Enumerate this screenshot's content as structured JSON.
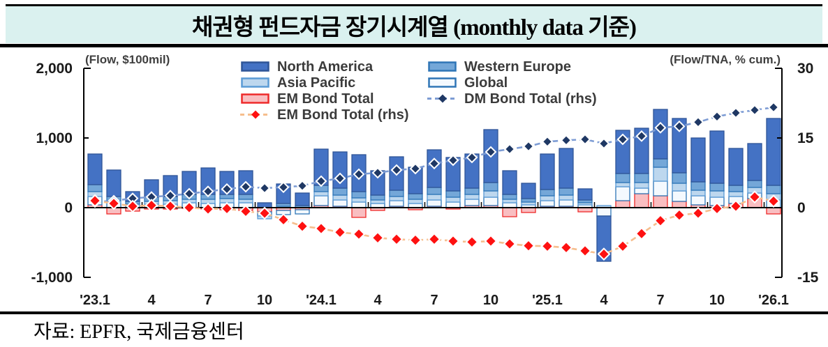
{
  "title": "채권형 펀드자금 장기시계열 (monthly data 기준)",
  "source": "자료: EPFR,  국제금융센터",
  "axes": {
    "left_unit": "(Flow, $100mil)",
    "right_unit": "(Flow/TNA, % cum.)",
    "left_tick_labels": [
      "2,000",
      "1,000",
      "0",
      "-1,000"
    ],
    "right_tick_labels": [
      "30",
      "15",
      "0",
      "-15"
    ],
    "left_range": [
      -1000,
      2000
    ],
    "right_range": [
      -15,
      30
    ]
  },
  "legend": {
    "columns": [
      [
        {
          "label": "North America",
          "type": "box",
          "fill": "#4472c4",
          "stroke": "#2f5597"
        },
        {
          "label": "Asia Pacific",
          "type": "box",
          "fill": "#bdd7ee",
          "stroke": "#5b9bd5"
        },
        {
          "label": "EM Bond Total",
          "type": "box",
          "fill": "#f9bec1",
          "stroke": "#ee2a2a"
        },
        {
          "label": "EM Bond Total (rhs)",
          "type": "line",
          "stroke": "#f6be8d",
          "marker": "#fe1111"
        }
      ],
      [
        {
          "label": "Western Europe",
          "type": "box",
          "fill": "#74a7d8",
          "stroke": "#2e75b6"
        },
        {
          "label": "Global",
          "type": "box",
          "fill": "#f4f9fe",
          "stroke": "#2e75b6"
        },
        {
          "label": "DM Bond Total (rhs)",
          "type": "line",
          "stroke": "#7d9cd4",
          "marker": "#1f3864"
        }
      ]
    ]
  },
  "chart_data": {
    "type": "combo: stacked bar (lhs) + line (rhs)",
    "categories": [
      "'23.1",
      "'23.2",
      "'23.3",
      "'23.4",
      "'23.5",
      "'23.6",
      "'23.7",
      "'23.8",
      "'23.9",
      "'23.10",
      "'23.11",
      "'23.12",
      "'24.1",
      "'24.2",
      "'24.3",
      "'24.4",
      "'24.5",
      "'24.6",
      "'24.7",
      "'24.8",
      "'24.9",
      "'24.10",
      "'24.11",
      "'24.12",
      "'25.1",
      "'25.2",
      "'25.3",
      "'25.4",
      "'25.5",
      "'25.6",
      "'25.7",
      "'25.8",
      "'25.9",
      "'25.10",
      "'25.11",
      "'25.12",
      "'26.1"
    ],
    "x_axis_labels": [
      "'23.1",
      "4",
      "7",
      "10",
      "'24.1",
      "4",
      "7",
      "10",
      "'25.1",
      "4",
      "7",
      "10",
      "'26.1"
    ],
    "title": "채권형 펀드자금 장기시계열 (monthly data 기준)",
    "left_ylabel": "(Flow, $100mil)",
    "right_ylabel": "(Flow/TNA, % cum.)",
    "left_ylim": [
      -1000,
      2000
    ],
    "right_ylim": [
      -15,
      30
    ],
    "bar_series": [
      {
        "name": "EM Bond Total",
        "fill": "#f9bec1",
        "stroke": "#ee2a2a",
        "values": [
          40,
          -90,
          -50,
          -20,
          -20,
          -10,
          -20,
          -30,
          -40,
          -60,
          -40,
          -30,
          30,
          20,
          -140,
          -40,
          20,
          -30,
          20,
          -20,
          30,
          30,
          -130,
          -70,
          20,
          20,
          -60,
          0,
          100,
          200,
          170,
          90,
          40,
          30,
          60,
          130,
          -90
        ]
      },
      {
        "name": "Global",
        "fill": "#f4f9fe",
        "stroke": "#2e75b6",
        "values": [
          120,
          60,
          20,
          50,
          50,
          70,
          60,
          70,
          70,
          -60,
          -60,
          -60,
          140,
          90,
          80,
          60,
          80,
          60,
          90,
          80,
          90,
          120,
          70,
          40,
          80,
          90,
          40,
          -120,
          200,
          80,
          210,
          150,
          130,
          120,
          100,
          80,
          110
        ]
      },
      {
        "name": "Asia Pacific",
        "fill": "#bdd7ee",
        "stroke": "#5b9bd5",
        "values": [
          70,
          40,
          30,
          40,
          50,
          50,
          60,
          60,
          50,
          -40,
          20,
          0,
          60,
          70,
          60,
          50,
          60,
          60,
          80,
          70,
          70,
          90,
          50,
          40,
          70,
          70,
          30,
          30,
          60,
          80,
          200,
          110,
          80,
          90,
          70,
          80,
          90
        ]
      },
      {
        "name": "Western Europe",
        "fill": "#74a7d8",
        "stroke": "#2e75b6",
        "values": [
          100,
          60,
          40,
          60,
          60,
          70,
          70,
          60,
          70,
          0,
          40,
          30,
          90,
          100,
          90,
          70,
          90,
          80,
          100,
          90,
          90,
          120,
          70,
          50,
          90,
          100,
          40,
          0,
          130,
          130,
          120,
          150,
          120,
          110,
          90,
          100,
          120
        ]
      },
      {
        "name": "North America",
        "fill": "#4472c4",
        "stroke": "#2f5597",
        "values": [
          440,
          380,
          140,
          250,
          300,
          330,
          380,
          330,
          340,
          70,
          280,
          180,
          520,
          520,
          530,
          350,
          480,
          380,
          540,
          480,
          490,
          760,
          340,
          220,
          510,
          570,
          160,
          -650,
          620,
          650,
          710,
          780,
          630,
          750,
          530,
          530,
          960
        ]
      }
    ],
    "line_series": [
      {
        "name": "DM Bond Total (rhs)",
        "axis": "right",
        "stroke": "#7d9cd4",
        "marker": "#1f3864",
        "marker_size": 7,
        "values": [
          1.2,
          1.5,
          2.0,
          2.3,
          2.6,
          3.0,
          3.5,
          4.0,
          4.5,
          4.2,
          4.4,
          4.7,
          5.7,
          6.3,
          7.2,
          7.5,
          8.1,
          8.4,
          9.5,
          10.2,
          10.8,
          12.0,
          12.6,
          13.2,
          14.2,
          14.5,
          14.7,
          13.8,
          14.7,
          15.4,
          17.2,
          17.5,
          18.4,
          19.6,
          20.4,
          21.0,
          21.6
        ]
      },
      {
        "name": "EM Bond Total (rhs)",
        "axis": "right",
        "stroke": "#f6be8d",
        "marker": "#fe1111",
        "marker_size": 8,
        "values": [
          1.5,
          0.9,
          0.3,
          0.5,
          0.3,
          0.0,
          -0.3,
          -0.2,
          -0.8,
          -1.2,
          -2.6,
          -4.0,
          -4.5,
          -5.3,
          -5.7,
          -6.5,
          -6.8,
          -7.0,
          -6.8,
          -7.2,
          -7.4,
          -7.2,
          -7.8,
          -8.2,
          -8.3,
          -8.6,
          -9.3,
          -10.0,
          -8.3,
          -5.6,
          -2.8,
          -1.6,
          -1.2,
          -0.2,
          0.3,
          2.3,
          1.4
        ]
      }
    ],
    "grid": false,
    "legend_position": "top-center, two columns"
  }
}
